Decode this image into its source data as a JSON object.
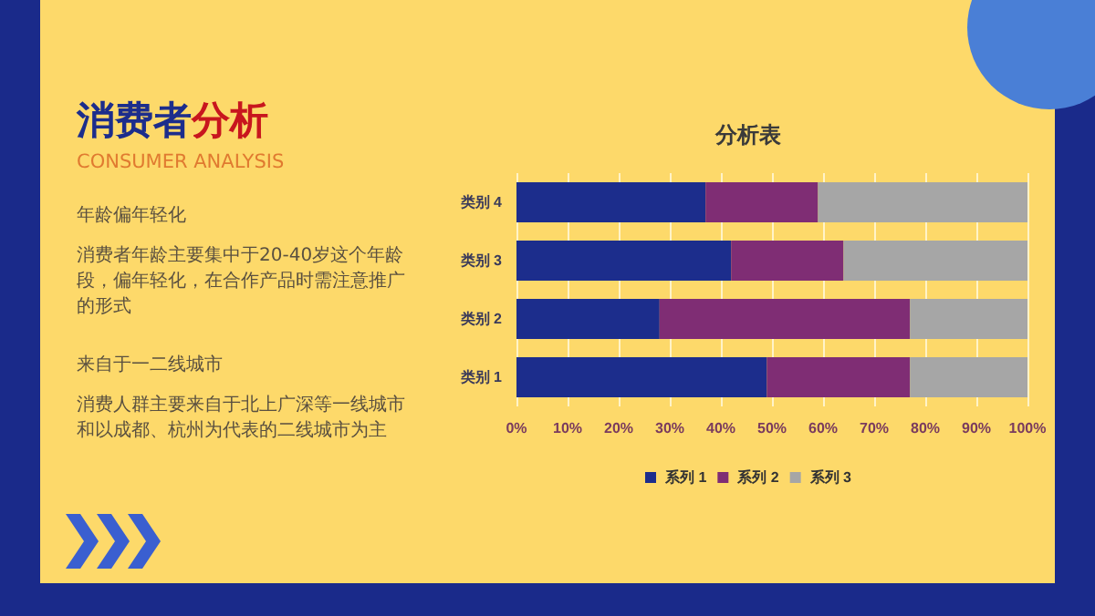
{
  "chart_data": {
    "type": "bar",
    "orientation": "horizontal",
    "stacked": true,
    "title": "分析表",
    "categories": [
      "类别 4",
      "类别 3",
      "类别 2",
      "类别 1"
    ],
    "series": [
      {
        "name": "系列 1",
        "color": "#1c2d8c",
        "values": [
          37,
          42,
          28,
          49
        ]
      },
      {
        "name": "系列 2",
        "color": "#7f2d74",
        "values": [
          22,
          22,
          49,
          28
        ]
      },
      {
        "name": "系列 3",
        "color": "#a6a6a6",
        "values": [
          41,
          36,
          23,
          23
        ]
      }
    ],
    "xlim": [
      0,
      100
    ],
    "xticks": [
      {
        "value": 0,
        "label": "0%"
      },
      {
        "value": 10,
        "label": "10%"
      },
      {
        "value": 20,
        "label": "20%"
      },
      {
        "value": 30,
        "label": "30%"
      },
      {
        "value": 40,
        "label": "40%"
      },
      {
        "value": 50,
        "label": "50%"
      },
      {
        "value": 60,
        "label": "60%"
      },
      {
        "value": 70,
        "label": "70%"
      },
      {
        "value": 80,
        "label": "80%"
      },
      {
        "value": 90,
        "label": "90%"
      },
      {
        "value": 100,
        "label": "100%"
      }
    ],
    "grid": "x",
    "legend": "bottom",
    "annotations": [
      "消费者分析",
      "CONSUMER ANALYSIS",
      "年龄偏年轻化",
      "消费者年龄主要集中于20-40岁这个年龄段，偏年轻化，在合作产品时需注意推广的形式",
      "来自于一二线城市",
      "消费人群主要来自于北上广深等一线城市和以成都、杭州为代表的二线城市为主"
    ]
  }
}
